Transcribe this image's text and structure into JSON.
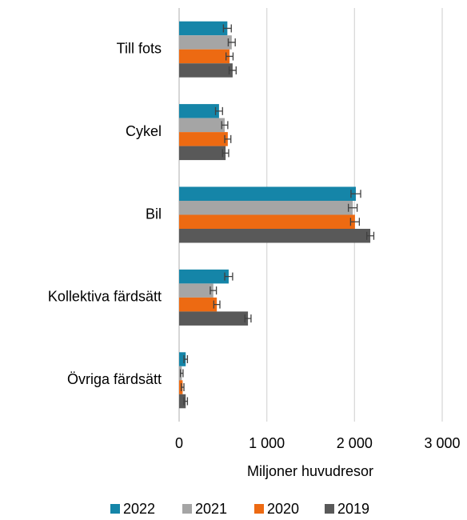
{
  "chart_data": {
    "type": "barh",
    "categories": [
      "Till fots",
      "Cykel",
      "Bil",
      "Kollektiva färdsätt",
      "Övriga färdsätt"
    ],
    "series": [
      {
        "name": "2022",
        "color": "#1585a8",
        "values": [
          550,
          455,
          2015,
          565,
          75
        ],
        "errors": [
          45,
          40,
          55,
          45,
          20
        ]
      },
      {
        "name": "2021",
        "color": "#a5a5a5",
        "values": [
          600,
          520,
          1980,
          390,
          30
        ],
        "errors": [
          40,
          35,
          50,
          35,
          15
        ]
      },
      {
        "name": "2020",
        "color": "#ed6a12",
        "values": [
          575,
          555,
          2005,
          430,
          40
        ],
        "errors": [
          40,
          35,
          50,
          35,
          15
        ]
      },
      {
        "name": "2019",
        "color": "#595959",
        "values": [
          610,
          530,
          2180,
          785,
          75
        ],
        "errors": [
          40,
          35,
          40,
          35,
          20
        ]
      }
    ],
    "xlabel": "Miljoner huvudresor",
    "xlim": [
      0,
      3000
    ],
    "xticks": [
      0,
      {
        "value": 1000,
        "label": "1 000"
      },
      {
        "value": 2000,
        "label": "2 000"
      },
      {
        "value": 3000,
        "label": "3 000"
      }
    ],
    "grid": true,
    "legend": "bottom"
  }
}
